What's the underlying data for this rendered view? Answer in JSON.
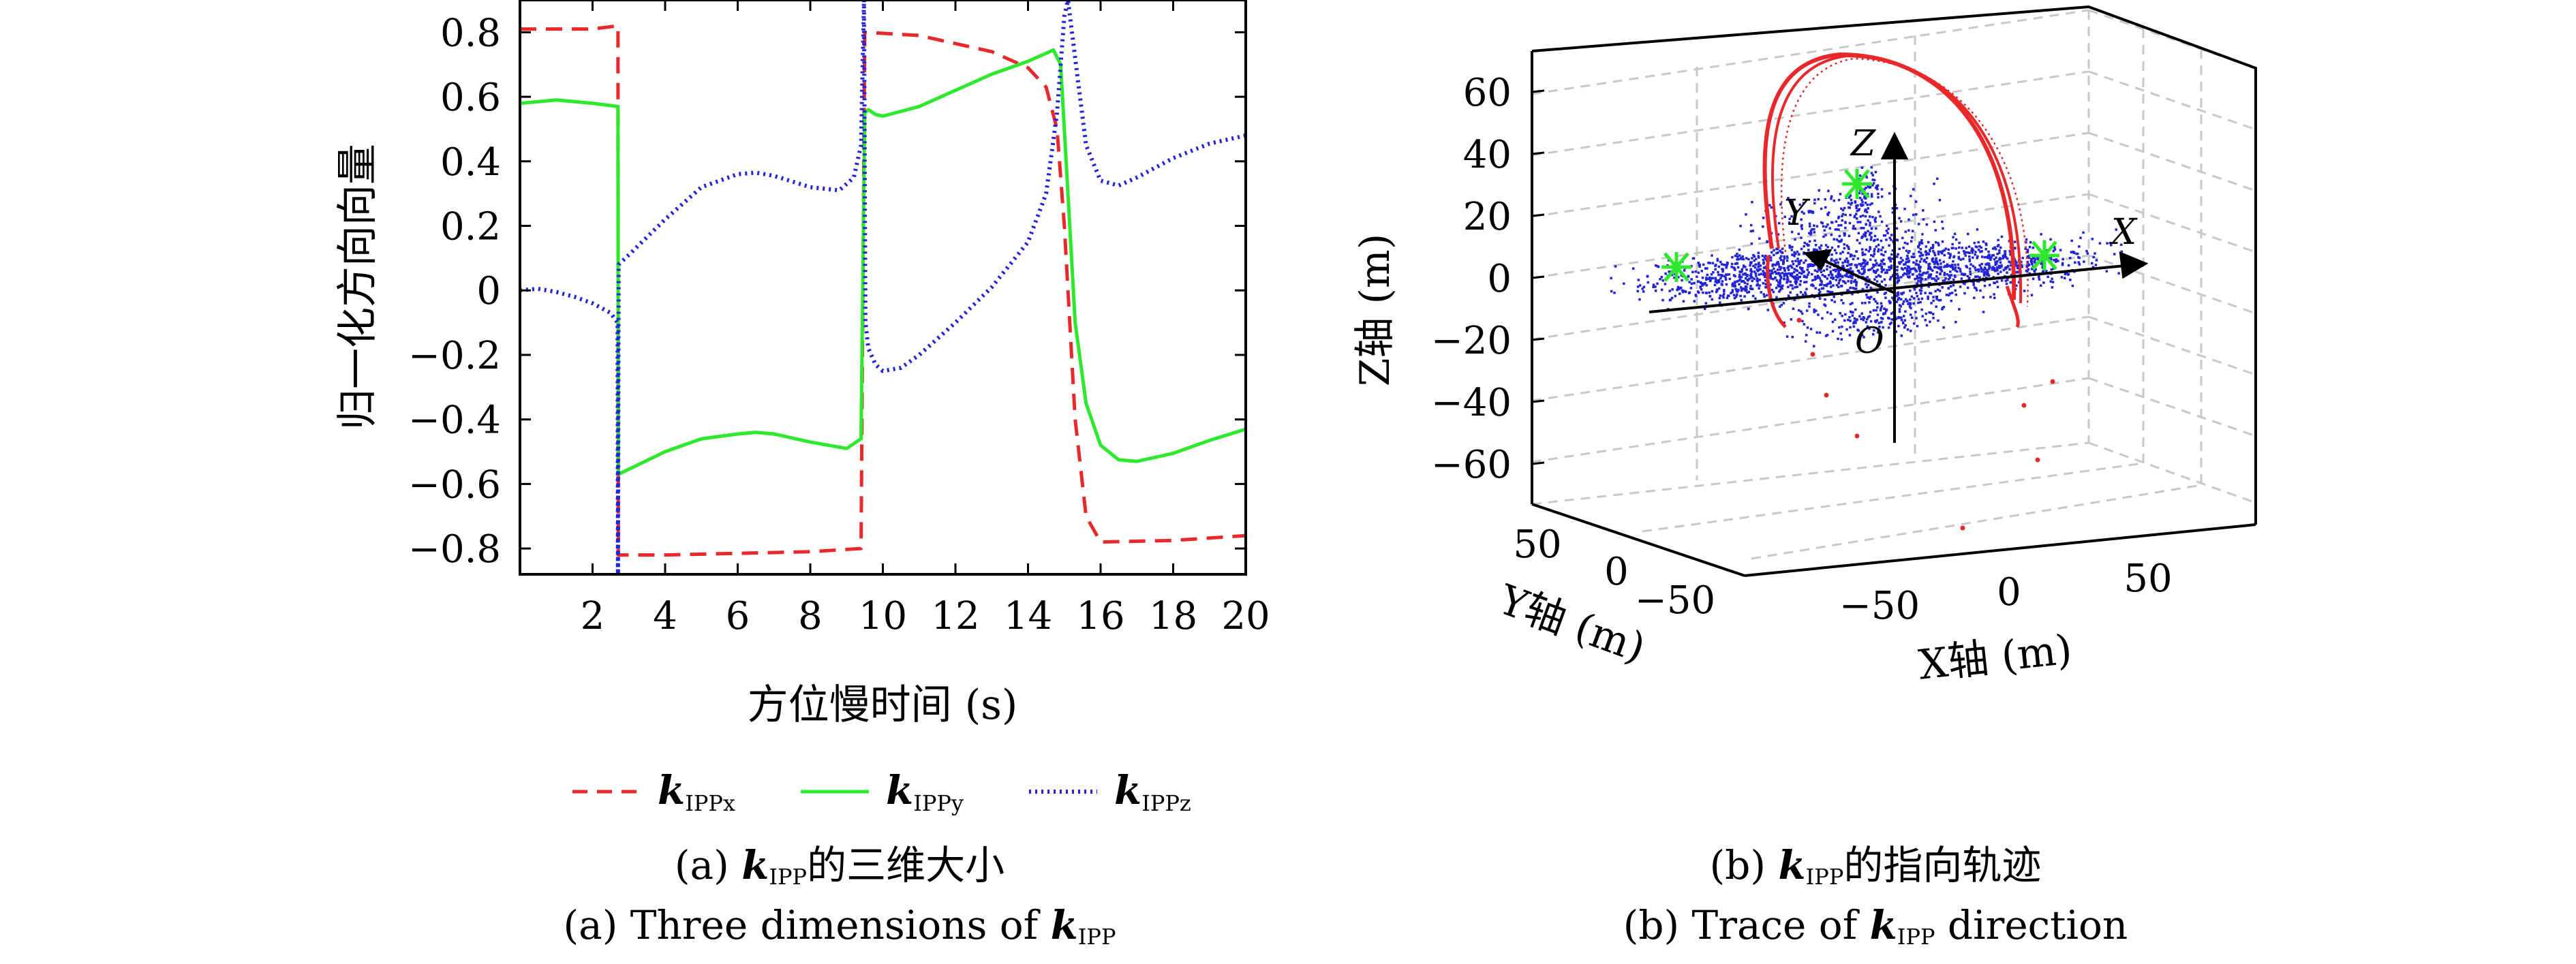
{
  "chart_data": [
    {
      "type": "line",
      "xlabel": "方位慢时间 (s)",
      "ylabel": "归一化方向向量",
      "xlim": [
        0,
        20
      ],
      "ylim": [
        -0.88,
        0.9
      ],
      "xticks": [
        2,
        4,
        6,
        8,
        10,
        12,
        14,
        16,
        18,
        20
      ],
      "yticks": [
        -0.8,
        -0.6,
        -0.4,
        -0.2,
        0,
        0.2,
        0.4,
        0.6,
        0.8
      ],
      "ytick_labels": [
        "−0.8",
        "−0.6",
        "−0.4",
        "−0.2",
        "0",
        "0.2",
        "0.4",
        "0.6",
        "0.8"
      ],
      "legend_placement": "bottom",
      "series": [
        {
          "name": "k",
          "sub": "IPPx",
          "color": "#e8282b",
          "dash": "dashed",
          "x": [
            0,
            1,
            2,
            2.7,
            2.71,
            4,
            6,
            8,
            9.4,
            9.5,
            9.52,
            11,
            13,
            14,
            14.5,
            14.8,
            15,
            15.3,
            15.6,
            16,
            18,
            20
          ],
          "y": [
            0.81,
            0.81,
            0.81,
            0.82,
            -0.82,
            -0.82,
            -0.815,
            -0.81,
            -0.8,
            0.8,
            0.8,
            0.79,
            0.74,
            0.69,
            0.63,
            0.5,
            0.2,
            -0.4,
            -0.7,
            -0.78,
            -0.775,
            -0.76
          ]
        },
        {
          "name": "k",
          "sub": "IPPy",
          "color": "#2ee82e",
          "dash": "solid",
          "x": [
            0,
            0.5,
            1,
            2,
            2.7,
            2.71,
            4,
            5,
            6,
            6.5,
            7,
            8,
            9,
            9.4,
            9.5,
            9.6,
            9.8,
            10,
            11,
            12,
            13,
            14,
            14.7,
            14.9,
            15.1,
            15.3,
            15.6,
            16,
            16.5,
            17,
            18,
            19,
            20
          ],
          "y": [
            0.58,
            0.585,
            0.59,
            0.58,
            0.57,
            -0.57,
            -0.5,
            -0.46,
            -0.445,
            -0.44,
            -0.445,
            -0.47,
            -0.49,
            -0.46,
            0.55,
            0.56,
            0.545,
            0.54,
            0.57,
            0.62,
            0.67,
            0.71,
            0.745,
            0.7,
            0.3,
            -0.1,
            -0.35,
            -0.48,
            -0.525,
            -0.53,
            -0.505,
            -0.465,
            -0.43
          ]
        },
        {
          "name": "k",
          "sub": "IPPz",
          "color": "#2323d6",
          "dash": "dotted",
          "x": [
            0,
            0.5,
            1,
            1.5,
            2,
            2.5,
            2.69,
            2.7,
            2.72,
            3,
            4,
            5,
            6,
            6.5,
            7,
            8,
            8.8,
            9.2,
            9.4,
            9.48,
            9.52,
            9.6,
            9.8,
            10,
            10.5,
            11,
            12,
            13,
            14,
            14.5,
            14.8,
            15,
            15.1,
            15.3,
            15.6,
            16,
            16.5,
            17,
            18,
            19,
            20
          ],
          "y": [
            0,
            0.005,
            -0.005,
            -0.02,
            -0.04,
            -0.07,
            -0.1,
            -0.88,
            0.08,
            0.11,
            0.22,
            0.32,
            0.36,
            0.365,
            0.355,
            0.32,
            0.31,
            0.35,
            0.45,
            0.9,
            -0.1,
            -0.18,
            -0.23,
            -0.25,
            -0.24,
            -0.2,
            -0.1,
            0.01,
            0.15,
            0.3,
            0.55,
            0.85,
            0.9,
            0.72,
            0.45,
            0.34,
            0.325,
            0.35,
            0.41,
            0.455,
            0.48
          ]
        }
      ]
    },
    {
      "type": "scatter3d",
      "xlabel": "X轴 (m)",
      "ylabel": "Y轴 (m)",
      "zlabel": "Z轴 (m)",
      "zticks": [
        -60,
        -40,
        -20,
        0,
        20,
        40,
        60
      ],
      "ztick_labels": [
        "−60",
        "−40",
        "−20",
        "0",
        "20",
        "40",
        "60"
      ],
      "xticks": [
        -50,
        0,
        50
      ],
      "xtick_labels": [
        "−50",
        "0",
        "50"
      ],
      "yticks": [
        50,
        0,
        -50
      ],
      "ytick_labels": [
        "50",
        "0",
        "−50"
      ],
      "grid": true,
      "axis_labels": {
        "X": "X",
        "Y": "Y",
        "Z": "Z",
        "O": "O"
      },
      "colors": {
        "trace": "#e8282b",
        "points": "#2323d6",
        "markers": "#2ee82e"
      }
    }
  ],
  "captions": {
    "a_line1_prefix": "(a) ",
    "a_line1_k": "k",
    "a_line1_sub": "IPP",
    "a_line1_suffix": "的三维大小",
    "a_line2_prefix": "(a) Three dimensions of ",
    "a_line2_k": "k",
    "a_line2_sub": "IPP",
    "b_line1_prefix": "(b) ",
    "b_line1_k": "k",
    "b_line1_sub": "IPP",
    "b_line1_suffix": "的指向轨迹",
    "b_line2_prefix": "(b) Trace of ",
    "b_line2_k": "k",
    "b_line2_sub": "IPP",
    "b_line2_suffix": " direction"
  }
}
